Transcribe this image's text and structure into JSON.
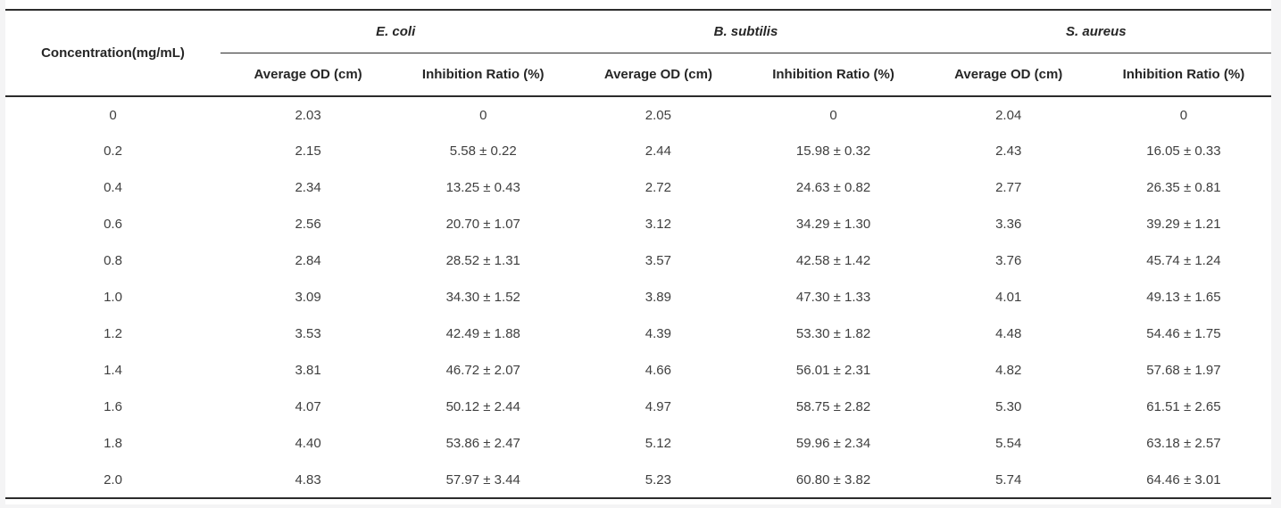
{
  "table": {
    "col0_header": "Concentration(mg/mL)",
    "groups": [
      {
        "name": "E. coli"
      },
      {
        "name": "B. subtilis"
      },
      {
        "name": "S. aureus"
      }
    ],
    "subheaders": {
      "od": "Average OD (cm)",
      "ratio": "Inhibition Ratio (%)"
    },
    "rows": [
      [
        "0",
        "2.03",
        "0",
        "2.05",
        "0",
        "2.04",
        "0"
      ],
      [
        "0.2",
        "2.15",
        "5.58 ± 0.22",
        "2.44",
        "15.98 ± 0.32",
        "2.43",
        "16.05 ± 0.33"
      ],
      [
        "0.4",
        "2.34",
        "13.25 ± 0.43",
        "2.72",
        "24.63 ± 0.82",
        "2.77",
        "26.35 ± 0.81"
      ],
      [
        "0.6",
        "2.56",
        "20.70 ± 1.07",
        "3.12",
        "34.29 ± 1.30",
        "3.36",
        "39.29 ± 1.21"
      ],
      [
        "0.8",
        "2.84",
        "28.52 ± 1.31",
        "3.57",
        "42.58 ± 1.42",
        "3.76",
        "45.74 ± 1.24"
      ],
      [
        "1.0",
        "3.09",
        "34.30 ± 1.52",
        "3.89",
        "47.30 ± 1.33",
        "4.01",
        "49.13 ± 1.65"
      ],
      [
        "1.2",
        "3.53",
        "42.49 ± 1.88",
        "4.39",
        "53.30 ± 1.82",
        "4.48",
        "54.46 ± 1.75"
      ],
      [
        "1.4",
        "3.81",
        "46.72 ± 2.07",
        "4.66",
        "56.01 ± 2.31",
        "4.82",
        "57.68 ± 1.97"
      ],
      [
        "1.6",
        "4.07",
        "50.12 ± 2.44",
        "4.97",
        "58.75 ± 2.82",
        "5.30",
        "61.51 ± 2.65"
      ],
      [
        "1.8",
        "4.40",
        "53.86 ± 2.47",
        "5.12",
        "59.96 ± 2.34",
        "5.54",
        "63.18 ± 2.57"
      ],
      [
        "2.0",
        "4.83",
        "57.97 ± 3.44",
        "5.23",
        "60.80 ± 3.82",
        "5.74",
        "64.46 ± 3.01"
      ]
    ],
    "colors": {
      "rule": "#2b2b2b",
      "page_background": "#f4f4f5",
      "table_background": "#ffffff"
    }
  }
}
